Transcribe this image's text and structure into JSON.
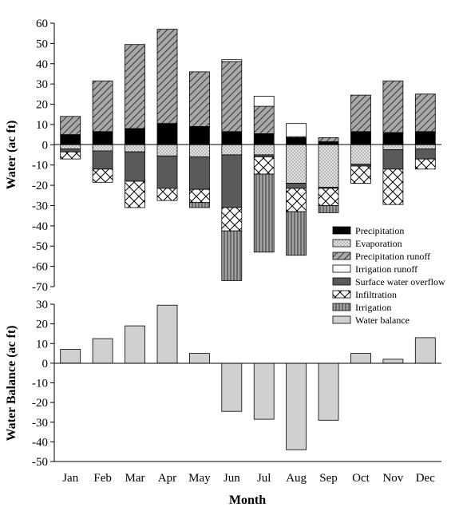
{
  "chart_data": [
    {
      "type": "bar",
      "stacked": true,
      "ylabel": "Water (ac ft)",
      "ylim": [
        -70,
        60
      ],
      "y_ticks": [
        60,
        50,
        40,
        30,
        20,
        10,
        0,
        -10,
        -20,
        -30,
        -40,
        -50,
        -60,
        -70
      ],
      "grid": false,
      "legend_position": "lower-right",
      "categories": [
        "Jan",
        "Feb",
        "Mar",
        "Apr",
        "May",
        "Jun",
        "Jul",
        "Aug",
        "Sep",
        "Oct",
        "Nov",
        "Dec"
      ],
      "series": [
        {
          "name": "Precipitation",
          "fill": "#000000",
          "pattern": "solid",
          "direction": "positive",
          "values": [
            5,
            6.5,
            8,
            10.5,
            9,
            6.5,
            5.5,
            3.5,
            1.5,
            6.5,
            6,
            6.5
          ]
        },
        {
          "name": "Evaporation",
          "fill": "#d4d4d4",
          "pattern": "dots",
          "direction": "negative",
          "values": [
            -2,
            -3,
            -3.5,
            -5.5,
            -6,
            -5,
            -5,
            -19,
            -21,
            -9.5,
            -2.5,
            -2
          ]
        },
        {
          "name": "Precipitation runoff",
          "fill": "#9a9a9a",
          "pattern": "diagonal",
          "direction": "positive",
          "values": [
            9,
            25,
            41.5,
            46.5,
            27,
            34.5,
            13.5,
            0.5,
            2,
            18,
            25.5,
            18.5
          ]
        },
        {
          "name": "Irrigation runoff",
          "fill": "#ffffff",
          "pattern": "solid",
          "direction": "positive",
          "values": [
            0,
            0,
            0,
            0,
            0,
            1,
            5,
            6.5,
            0,
            0,
            0,
            0
          ]
        },
        {
          "name": "Surface water overflow",
          "fill": "#5a5a5a",
          "pattern": "solid",
          "direction": "negative",
          "values": [
            -1.5,
            -9,
            -14.5,
            -16,
            -16,
            -26,
            -1,
            -2.5,
            -0.5,
            -1,
            -9.5,
            -5
          ]
        },
        {
          "name": "Infiltration",
          "fill": "#ffffff",
          "pattern": "crosshatch",
          "direction": "negative",
          "values": [
            -3.5,
            -6.5,
            -13,
            -6,
            -6.5,
            -11.5,
            -8.5,
            -11.5,
            -8.5,
            -8.5,
            -17.5,
            -5
          ]
        },
        {
          "name": "Irrigation",
          "fill": "#909090",
          "pattern": "vertical",
          "direction": "negative",
          "values": [
            0,
            0,
            0,
            0,
            -2.5,
            -24.5,
            -38.5,
            -21.5,
            -3.5,
            0,
            0,
            0
          ]
        }
      ]
    },
    {
      "type": "bar",
      "ylabel": "Water Balance (ac ft)",
      "xlabel": "Month",
      "ylim": [
        -50,
        30
      ],
      "y_ticks": [
        30,
        20,
        10,
        0,
        -10,
        -20,
        -30,
        -40,
        -50
      ],
      "grid": false,
      "categories": [
        "Jan",
        "Feb",
        "Mar",
        "Apr",
        "May",
        "Jun",
        "Jul",
        "Aug",
        "Sep",
        "Oct",
        "Nov",
        "Dec"
      ],
      "series": [
        {
          "name": "Water balance",
          "fill": "#d0d0d0",
          "values": [
            7,
            12.5,
            19,
            29.5,
            5,
            -24.5,
            -28.5,
            -44,
            -29,
            5,
            2,
            13
          ]
        }
      ]
    }
  ]
}
